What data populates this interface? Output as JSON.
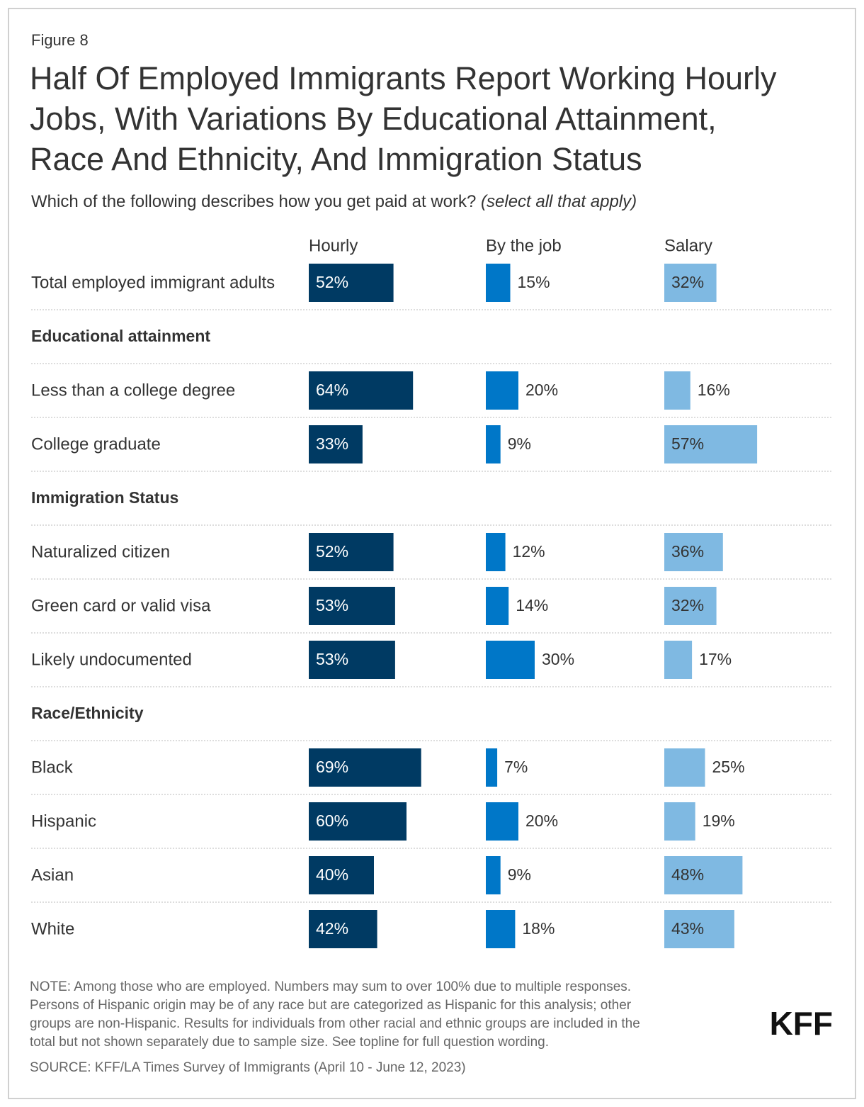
{
  "chart_data": {
    "type": "bar",
    "figure_label": "Figure 8",
    "title": [
      "Half Of Employed Immigrants Report Working Hourly",
      "Jobs, With Variations By Educational Attainment,",
      "Race And Ethnicity, And Immigration Status"
    ],
    "subtitle": "Which of the following describes how you get paid at work?",
    "subtitle_note": "(select all that apply)",
    "categories": [
      "Total employed immigrant adults",
      "Educational attainment",
      "Less than a college degree",
      "College graduate",
      "Immigration Status",
      "Naturalized citizen",
      "Green card or valid visa",
      "Likely undocumented",
      "Race/Ethnicity",
      "Black",
      "Hispanic",
      "Asian",
      "White"
    ],
    "xlim": [
      0,
      100
    ],
    "series": [
      {
        "name": "Hourly",
        "color": "#003a63",
        "label_color": "#ffffff",
        "values": [
          52,
          null,
          64,
          33,
          null,
          52,
          53,
          53,
          null,
          69,
          60,
          40,
          42
        ],
        "value_labels": [
          "52%",
          null,
          "64%",
          "33%",
          null,
          "52%",
          "53%",
          "53%",
          null,
          "69%",
          "60%",
          "40%",
          "42%"
        ]
      },
      {
        "name": "By the job",
        "color": "#0077c8",
        "label_color": "#333333",
        "values": [
          15,
          null,
          20,
          9,
          null,
          12,
          14,
          30,
          null,
          7,
          20,
          9,
          18
        ],
        "value_labels": [
          "15%",
          null,
          "20%",
          "9%",
          null,
          "12%",
          "14%",
          "30%",
          null,
          "7%",
          "20%",
          "9%",
          "18%"
        ]
      },
      {
        "name": "Salary",
        "color": "#7fb9e2",
        "label_color": "#333333",
        "values": [
          32,
          null,
          16,
          57,
          null,
          36,
          32,
          17,
          null,
          25,
          19,
          48,
          43
        ],
        "value_labels": [
          "32%",
          null,
          "16%",
          "57%",
          null,
          "36%",
          "32%",
          "17%",
          null,
          "25%",
          "19%",
          "48%",
          "43%"
        ]
      }
    ],
    "note": [
      "NOTE: Among those who are employed. Numbers may sum to over 100% due to multiple responses.",
      "Persons of Hispanic origin may be of any race but are categorized as Hispanic for this analysis; other",
      "groups are non-Hispanic. Results for individuals from other racial and ethnic groups are included in the",
      "total but not shown separately due to sample size. See topline for full question wording."
    ],
    "source": "SOURCE: KFF/LA Times Survey of Immigrants (April 10 - June 12, 2023)",
    "logo": "KFF"
  }
}
